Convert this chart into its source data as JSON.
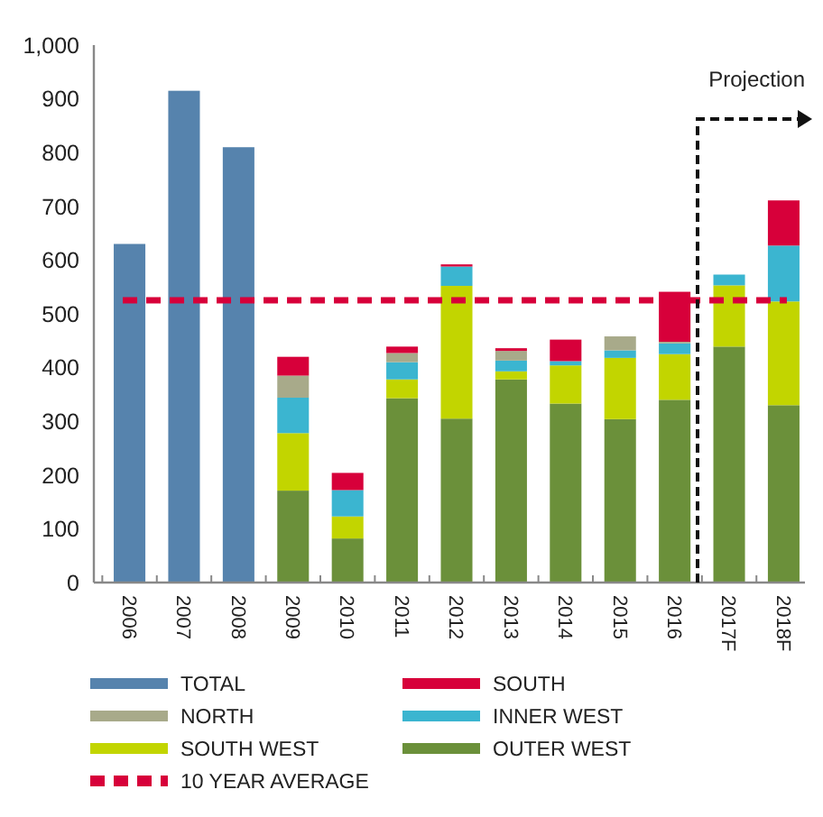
{
  "chart_data": {
    "type": "bar",
    "stacked": true,
    "categories": [
      "2006",
      "2007",
      "2008",
      "2009",
      "2010",
      "2011",
      "2012",
      "2013",
      "2014",
      "2015",
      "2016",
      "2017F",
      "2018F"
    ],
    "series": [
      {
        "name": "TOTAL",
        "color": "#5683ad",
        "values": [
          630,
          915,
          810,
          null,
          null,
          null,
          null,
          null,
          null,
          null,
          null,
          null,
          null
        ]
      },
      {
        "name": "OUTER WEST",
        "color": "#6b903a",
        "values": [
          null,
          null,
          null,
          171,
          82,
          343,
          305,
          378,
          333,
          304,
          340,
          439,
          330
        ]
      },
      {
        "name": "SOUTH WEST",
        "color": "#c2d500",
        "values": [
          null,
          null,
          null,
          107,
          41,
          35,
          247,
          15,
          71,
          114,
          85,
          114,
          193
        ]
      },
      {
        "name": "INNER WEST",
        "color": "#3bb5d0",
        "values": [
          null,
          null,
          null,
          66,
          49,
          32,
          36,
          20,
          8,
          14,
          20,
          20,
          104
        ]
      },
      {
        "name": "NORTH",
        "color": "#a8aa8a",
        "values": [
          null,
          null,
          null,
          41,
          null,
          17,
          null,
          18,
          null,
          26,
          3,
          null,
          null
        ]
      },
      {
        "name": "SOUTH",
        "color": "#d7003a",
        "values": [
          null,
          null,
          null,
          35,
          32,
          12,
          4,
          5,
          40,
          null,
          93,
          null,
          84
        ]
      }
    ],
    "ylim": [
      0,
      1000
    ],
    "yticks": [
      0,
      100,
      200,
      300,
      400,
      500,
      600,
      700,
      800,
      900,
      {
        "value": 1000,
        "label": "1,000"
      }
    ],
    "ref_lines": [
      {
        "axis": "y",
        "value": 525,
        "label": "10 YEAR AVERAGE",
        "color": "#d7003a",
        "line_style": "dashed"
      }
    ],
    "annotations": [
      "Projection"
    ],
    "legend": "bottom",
    "grid": false
  }
}
